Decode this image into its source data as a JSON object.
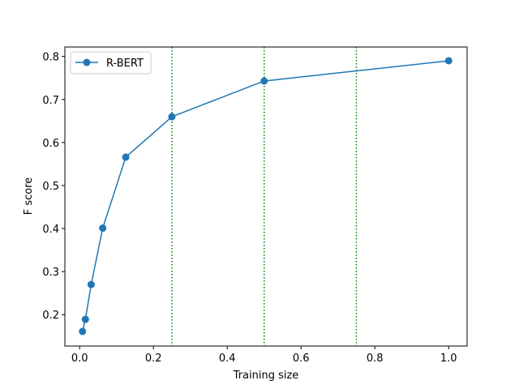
{
  "chart_data": {
    "type": "line",
    "xlabel": "Training size",
    "ylabel": "F score",
    "xlim": [
      -0.04,
      1.05
    ],
    "ylim": [
      0.127,
      0.822
    ],
    "xticks": [
      0.0,
      0.2,
      0.4,
      0.6,
      0.8,
      1.0
    ],
    "xtick_labels": [
      "0.0",
      "0.2",
      "0.4",
      "0.6",
      "0.8",
      "1.0"
    ],
    "yticks": [
      0.2,
      0.3,
      0.4,
      0.5,
      0.6,
      0.7,
      0.8
    ],
    "ytick_labels": [
      "0.2",
      "0.3",
      "0.4",
      "0.5",
      "0.6",
      "0.7",
      "0.8"
    ],
    "grid": false,
    "legend": {
      "position": "upper-left"
    },
    "series": [
      {
        "name": "R-BERT",
        "color": "#1f77b4",
        "marker": "circle",
        "x": [
          0.0078,
          0.0156,
          0.03125,
          0.0625,
          0.125,
          0.25,
          0.5,
          1.0
        ],
        "y": [
          0.161,
          0.189,
          0.27,
          0.401,
          0.566,
          0.66,
          0.743,
          0.79
        ]
      }
    ],
    "vlines": {
      "x": [
        0.25,
        0.5,
        0.75
      ],
      "color": "#008000",
      "style": "dotted"
    }
  }
}
